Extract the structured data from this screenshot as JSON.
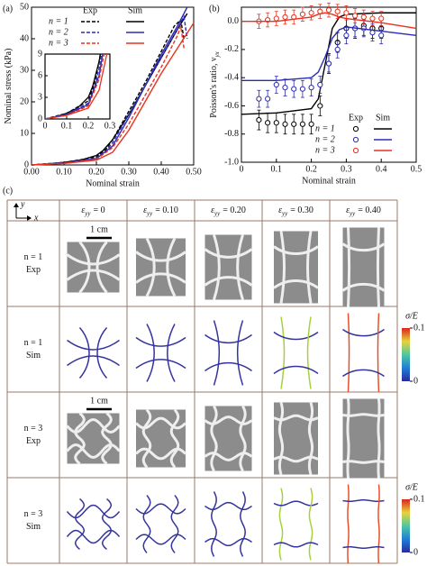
{
  "chart_data": [
    {
      "type": "line",
      "panel_label": "(a)",
      "x_label": "Nominal strain",
      "y_label": "Nominal stress (kPa)",
      "xlim": [
        0,
        0.5
      ],
      "ylim": [
        0,
        50
      ],
      "xticks": [
        {
          "value": 0,
          "label": "0.00"
        },
        {
          "value": 0.1,
          "label": "0.10"
        },
        {
          "value": 0.2,
          "label": "0.20"
        },
        {
          "value": 0.3,
          "label": "0.30"
        },
        {
          "value": 0.4,
          "label": "0.40"
        },
        {
          "value": 0.5,
          "label": "0.50"
        }
      ],
      "yticks": [
        0,
        10,
        20,
        30,
        40,
        50
      ],
      "legend_headers": [
        "Exp",
        "Sim"
      ],
      "legend_location": "upper left",
      "series": [
        {
          "name": "n = 1",
          "color": "#000000",
          "exp": {
            "x": [
              0,
              0.1,
              0.2,
              0.23,
              0.25,
              0.3,
              0.35,
              0.4,
              0.44,
              0.46,
              0.47
            ],
            "values": [
              0,
              0.8,
              2.5,
              5,
              8,
              17,
              26,
              36,
              44,
              46,
              40
            ]
          },
          "sim": {
            "x": [
              0,
              0.05,
              0.1,
              0.15,
              0.2,
              0.22,
              0.25,
              0.3,
              0.35,
              0.4,
              0.45,
              0.48
            ],
            "values": [
              0,
              0.3,
              0.8,
              1.5,
              3,
              4.5,
              8,
              16,
              25,
              34,
              43,
              48
            ]
          }
        },
        {
          "name": "n = 2",
          "color": "#2b2bb5",
          "exp": {
            "x": [
              0,
              0.1,
              0.2,
              0.23,
              0.25,
              0.3,
              0.35,
              0.4,
              0.45,
              0.47,
              0.48
            ],
            "values": [
              0,
              0.7,
              2.2,
              4.5,
              7,
              16,
              25,
              34,
              43,
              47,
              40
            ]
          },
          "sim": {
            "x": [
              0,
              0.1,
              0.2,
              0.25,
              0.3,
              0.35,
              0.4,
              0.45,
              0.48
            ],
            "values": [
              0,
              0.6,
              2,
              6,
              15,
              25,
              35,
              44,
              50
            ]
          }
        },
        {
          "name": "n = 3",
          "color": "#e8321e",
          "exp": {
            "x": [
              0,
              0.1,
              0.2,
              0.25,
              0.3,
              0.35,
              0.4,
              0.45,
              0.46,
              0.47
            ],
            "values": [
              0,
              0.5,
              1.8,
              5.5,
              13,
              22,
              31,
              41,
              44,
              37
            ]
          },
          "sim": {
            "x": [
              0,
              0.1,
              0.2,
              0.25,
              0.3,
              0.35,
              0.4,
              0.45,
              0.5
            ],
            "values": [
              0,
              0.5,
              1.5,
              4,
              11,
              20,
              29,
              37,
              45
            ]
          }
        }
      ],
      "inset": {
        "xlim": [
          0,
          0.3
        ],
        "ylim": [
          0,
          9
        ],
        "xticks": [
          0,
          0.1,
          0.2,
          0.3
        ],
        "yticks": [
          0,
          3,
          6,
          9
        ]
      }
    },
    {
      "type": "scatter",
      "panel_label": "(b)",
      "x_label": "Nominal strain",
      "y_label": "Poisson's ratio, ν",
      "y_label_subscript": "yx",
      "xlim": [
        0,
        0.5
      ],
      "ylim": [
        -1,
        0.1
      ],
      "xticks": [
        0,
        0.1,
        0.2,
        0.3,
        0.4,
        0.5
      ],
      "yticks": [
        {
          "value": -1,
          "label": "-1.0"
        },
        {
          "value": -0.8,
          "label": "-0.8"
        },
        {
          "value": -0.6,
          "label": "-0.6"
        },
        {
          "value": -0.4,
          "label": "-0.4"
        },
        {
          "value": -0.2,
          "label": "-0.2"
        },
        {
          "value": 0,
          "label": "0.0"
        }
      ],
      "legend_headers": [
        "Exp",
        "Sim"
      ],
      "legend_location": "lower right",
      "series": [
        {
          "name": "n = 1",
          "color": "#000000",
          "exp": {
            "x": [
              0.05,
              0.075,
              0.1,
              0.125,
              0.15,
              0.175,
              0.2,
              0.225,
              0.25,
              0.275,
              0.3,
              0.325,
              0.35,
              0.375,
              0.4
            ],
            "values": [
              -0.7,
              -0.72,
              -0.72,
              -0.73,
              -0.73,
              -0.73,
              -0.73,
              -0.6,
              -0.3,
              -0.15,
              -0.05,
              -0.05,
              -0.03,
              -0.05,
              -0.05
            ],
            "errors": [
              0.07,
              0.07,
              0.07,
              0.07,
              0.07,
              0.07,
              0.07,
              0.07,
              0.07,
              0.07,
              0.07,
              0.07,
              0.07,
              0.07,
              0.07
            ]
          },
          "sim": {
            "x": [
              0,
              0.1,
              0.2,
              0.22,
              0.24,
              0.26,
              0.28,
              0.3,
              0.4,
              0.5
            ],
            "values": [
              -0.66,
              -0.65,
              -0.62,
              -0.55,
              -0.3,
              -0.05,
              0.03,
              0.05,
              0.06,
              0.06
            ]
          }
        },
        {
          "name": "n = 2",
          "color": "#2b2bb5",
          "exp": {
            "x": [
              0.05,
              0.075,
              0.1,
              0.125,
              0.15,
              0.175,
              0.2,
              0.225,
              0.25,
              0.275,
              0.3,
              0.325,
              0.35,
              0.375,
              0.4
            ],
            "values": [
              -0.55,
              -0.55,
              -0.45,
              -0.47,
              -0.48,
              -0.48,
              -0.47,
              -0.45,
              -0.3,
              -0.2,
              -0.1,
              -0.05,
              -0.05,
              -0.08,
              -0.1
            ],
            "errors": [
              0.06,
              0.06,
              0.06,
              0.06,
              0.06,
              0.06,
              0.06,
              0.06,
              0.06,
              0.06,
              0.06,
              0.06,
              0.06,
              0.06,
              0.06
            ]
          },
          "sim": {
            "x": [
              0,
              0.1,
              0.2,
              0.22,
              0.24,
              0.26,
              0.28,
              0.3,
              0.4,
              0.5
            ],
            "values": [
              -0.42,
              -0.42,
              -0.4,
              -0.36,
              -0.25,
              -0.12,
              -0.06,
              -0.04,
              -0.07,
              -0.1
            ]
          }
        },
        {
          "name": "n = 3",
          "color": "#e8321e",
          "exp": {
            "x": [
              0.05,
              0.075,
              0.1,
              0.125,
              0.15,
              0.175,
              0.2,
              0.225,
              0.25,
              0.275,
              0.3,
              0.325,
              0.35,
              0.375,
              0.4
            ],
            "values": [
              0,
              0.01,
              0.02,
              0.03,
              0.03,
              0.05,
              0.06,
              0.07,
              0.08,
              0.07,
              0.06,
              0.04,
              0.03,
              0.02,
              0.02
            ],
            "errors": [
              0.05,
              0.05,
              0.05,
              0.05,
              0.05,
              0.05,
              0.05,
              0.05,
              0.05,
              0.05,
              0.05,
              0.05,
              0.05,
              0.05,
              0.05
            ]
          },
          "sim": {
            "x": [
              0,
              0.1,
              0.2,
              0.22,
              0.24,
              0.26,
              0.28,
              0.3,
              0.4,
              0.5
            ],
            "values": [
              0,
              0,
              0.03,
              0.05,
              0.06,
              0.05,
              0.03,
              0.02,
              -0.01,
              -0.05
            ]
          }
        }
      ]
    }
  ],
  "panel_c": {
    "panel_label": "(c)",
    "axis_labels": [
      "y",
      "x"
    ],
    "columns": [
      {
        "symbol": "ε",
        "subscript": "yy",
        "text": "= 0"
      },
      {
        "symbol": "ε",
        "subscript": "yy",
        "text": "= 0.10"
      },
      {
        "symbol": "ε",
        "subscript": "yy",
        "text": "= 0.20"
      },
      {
        "symbol": "ε",
        "subscript": "yy",
        "text": "= 0.30"
      },
      {
        "symbol": "ε",
        "subscript": "yy",
        "text": "= 0.40"
      }
    ],
    "rows": [
      {
        "label": [
          "n = 1",
          "Exp"
        ],
        "scale_bar": "1 cm"
      },
      {
        "label": [
          "n = 1",
          "Sim"
        ],
        "colorbar": {
          "label": "σ/E",
          "max": 0.1,
          "min": 0
        }
      },
      {
        "label": [
          "n = 3",
          "Exp"
        ],
        "scale_bar": "1 cm"
      },
      {
        "label": [
          "n = 3",
          "Sim"
        ],
        "colorbar": {
          "label": "σ/E",
          "max": 0.1,
          "min": 0
        }
      }
    ]
  }
}
